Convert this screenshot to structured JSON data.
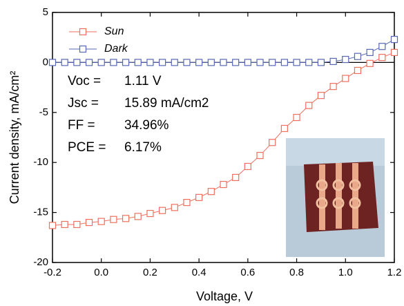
{
  "chart_data": {
    "type": "line",
    "x_label": "Voltage, V",
    "y_label": "Current density, mA/cm²",
    "x": [
      -0.2,
      -0.15,
      -0.1,
      -0.05,
      0,
      0.05,
      0.1,
      0.15,
      0.2,
      0.25,
      0.3,
      0.35,
      0.4,
      0.45,
      0.5,
      0.55,
      0.6,
      0.65,
      0.7,
      0.75,
      0.8,
      0.85,
      0.9,
      0.95,
      1,
      1.05,
      1.1,
      1.15,
      1.2
    ],
    "series": [
      {
        "name": "Sun",
        "color": "#ef6f5f",
        "values": [
          -16.3,
          -16.2,
          -16.2,
          -16.0,
          -15.9,
          -15.7,
          -15.6,
          -15.4,
          -15.1,
          -14.8,
          -14.5,
          -14.0,
          -13.5,
          -12.9,
          -12.2,
          -11.5,
          -10.4,
          -9.3,
          -8.0,
          -6.6,
          -5.5,
          -4.3,
          -3.3,
          -2.4,
          -1.6,
          -0.8,
          -0.1,
          0.5,
          1.0
        ]
      },
      {
        "name": "Dark",
        "color": "#5666b3",
        "values": [
          0,
          0,
          0,
          0,
          0,
          0,
          0,
          0,
          0,
          0,
          0,
          0,
          0,
          0,
          0,
          0,
          0,
          0,
          0,
          0,
          0,
          0,
          0,
          0.1,
          0.3,
          0.6,
          1.0,
          1.6,
          2.3
        ]
      }
    ],
    "xlim": [
      -0.2,
      1.2
    ],
    "xticks": [
      -0.2,
      {
        "value": 0,
        "label": "0.0"
      },
      0.2,
      0.4,
      0.6,
      0.8,
      {
        "value": 1,
        "label": "1.0"
      },
      1.2
    ],
    "ylim": [
      -20,
      5
    ],
    "yticks": [
      5,
      0,
      -5,
      -10,
      -15,
      -20
    ],
    "legend": "upper left",
    "annotations": [
      {
        "label": "Voc =",
        "value": "1.11 V"
      },
      {
        "label": "Jsc =",
        "value": "15.89 mA/cm2"
      },
      {
        "label": "FF =",
        "value": "34.96%"
      },
      {
        "label": "PCE =",
        "value": "6.17%"
      }
    ]
  }
}
